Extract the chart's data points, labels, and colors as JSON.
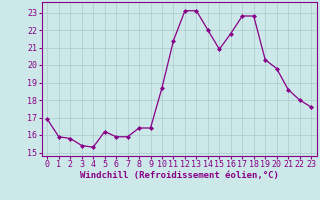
{
  "x": [
    0,
    1,
    2,
    3,
    4,
    5,
    6,
    7,
    8,
    9,
    10,
    11,
    12,
    13,
    14,
    15,
    16,
    17,
    18,
    19,
    20,
    21,
    22,
    23
  ],
  "y": [
    16.9,
    15.9,
    15.8,
    15.4,
    15.3,
    16.2,
    15.9,
    15.9,
    16.4,
    16.4,
    18.7,
    21.4,
    23.1,
    23.1,
    22.0,
    20.9,
    21.8,
    22.8,
    22.8,
    20.3,
    19.8,
    18.6,
    18.0,
    17.6
  ],
  "line_color": "#880088",
  "marker": "D",
  "marker_size": 2.0,
  "bg_color": "#cce8e8",
  "grid_color": "#aacccc",
  "xlabel": "Windchill (Refroidissement éolien,°C)",
  "xlabel_color": "#880088",
  "xlabel_fontsize": 6.5,
  "ylabel_ticks": [
    15,
    16,
    17,
    18,
    19,
    20,
    21,
    22,
    23
  ],
  "xlim": [
    -0.5,
    23.5
  ],
  "ylim": [
    14.8,
    23.6
  ],
  "tick_fontsize": 6.0,
  "tick_color": "#880088",
  "spine_color": "#880088",
  "line_width": 0.9
}
